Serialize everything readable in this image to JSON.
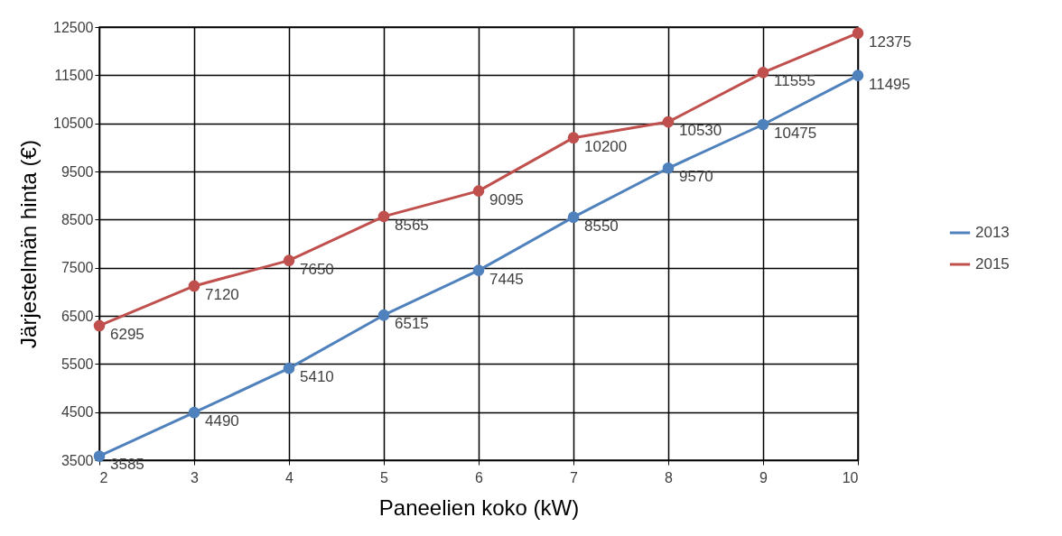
{
  "chart_data": {
    "type": "line",
    "xlabel": "Paneelien koko (kW)",
    "ylabel": "Järjestelmän hinta (€)",
    "x": [
      2,
      3,
      4,
      5,
      6,
      7,
      8,
      9,
      10
    ],
    "series": [
      {
        "name": "2013",
        "color": "#4f81bd",
        "values": [
          3585,
          4490,
          5410,
          6515,
          7445,
          8550,
          9570,
          10475,
          11495
        ]
      },
      {
        "name": "2015",
        "color": "#c0504d",
        "values": [
          6295,
          7120,
          7650,
          8565,
          9095,
          10200,
          10530,
          11555,
          12375
        ]
      }
    ],
    "xlim": [
      2,
      10
    ],
    "xticks": [
      2,
      3,
      4,
      5,
      6,
      7,
      8,
      9,
      10
    ],
    "ylim": [
      3500,
      12500
    ],
    "yticks": [
      3500,
      4500,
      5500,
      6500,
      7500,
      8500,
      9500,
      10500,
      11500,
      12500
    ],
    "grid": true,
    "legend": "right",
    "marker": "circle",
    "line_style": "solid",
    "data_labels": true
  }
}
